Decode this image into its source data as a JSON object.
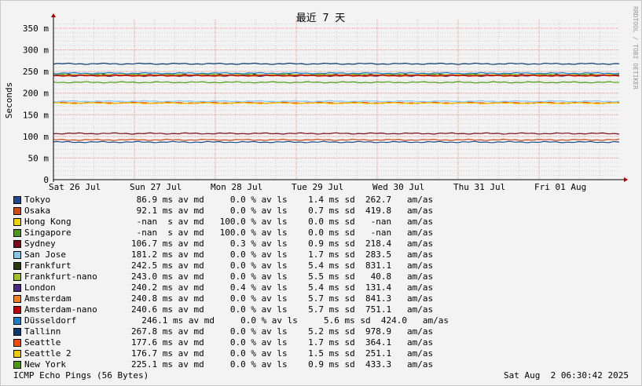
{
  "chart_data": {
    "type": "line",
    "title": "最近 7 天",
    "ylabel": "Seconds",
    "watermark": "RRDTOOL / TOBI OETIKER",
    "ylim": [
      0,
      0.37
    ],
    "y_ticks": [
      {
        "v": 0,
        "label": "0"
      },
      {
        "v": 0.05,
        "label": "50 m"
      },
      {
        "v": 0.1,
        "label": "100 m"
      },
      {
        "v": 0.15,
        "label": "150 m"
      },
      {
        "v": 0.2,
        "label": "200 m"
      },
      {
        "v": 0.25,
        "label": "250 m"
      },
      {
        "v": 0.3,
        "label": "300 m"
      },
      {
        "v": 0.35,
        "label": "350 m"
      }
    ],
    "x_ticks": [
      "Sat 26 Jul",
      "Sun 27 Jul",
      "Mon 28 Jul",
      "Tue 29 Jul",
      "Wed 30 Jul",
      "Thu 31 Jul",
      "Fri 01 Aug"
    ],
    "grid": true,
    "colors": {
      "major_grid": "#e8a0a0",
      "minor_grid": "#d0d0d0",
      "axis": "#000000",
      "arrow": "#a00000"
    },
    "series": [
      {
        "name": "Tokyo",
        "color": "#1e4a8c",
        "level": 0.0869
      },
      {
        "name": "Osaka",
        "color": "#d04a1a",
        "level": 0.0921
      },
      {
        "name": "Hong Kong",
        "color": "#f0d000",
        "level": null
      },
      {
        "name": "Singapore",
        "color": "#4a9a1a",
        "level": null
      },
      {
        "name": "Sydney",
        "color": "#7a0a1a",
        "level": 0.1067
      },
      {
        "name": "San Jose",
        "color": "#80c8f0",
        "level": 0.1812
      },
      {
        "name": "Frankfurt",
        "color": "#2a3a10",
        "level": 0.2425
      },
      {
        "name": "Frankfurt-nano",
        "color": "#a0c020",
        "level": 0.243
      },
      {
        "name": "London",
        "color": "#4a2a80",
        "level": 0.2402
      },
      {
        "name": "Amsterdam",
        "color": "#f08020",
        "level": 0.2408
      },
      {
        "name": "Amsterdam-nano",
        "color": "#c00000",
        "level": 0.2406
      },
      {
        "name": "Düsseldorf",
        "color": "#1a80c8",
        "level": 0.2461
      },
      {
        "name": "Tallinn",
        "color": "#0a3a70",
        "level": 0.2678
      },
      {
        "name": "Seattle",
        "color": "#f04a10",
        "level": 0.1776
      },
      {
        "name": "Seattle 2",
        "color": "#f0c800",
        "level": 0.1767
      },
      {
        "name": "New York",
        "color": "#4a9a10",
        "level": 0.2251
      }
    ]
  },
  "legend": [
    {
      "name": "Tokyo",
      "stats": " 86.9 ms av md     0.0 % av ls    1.4 ms sd  262.7   am/as"
    },
    {
      "name": "Osaka",
      "stats": " 92.1 ms av md     0.0 % av ls    0.7 ms sd  419.8   am/as"
    },
    {
      "name": "Hong Kong",
      "stats": " -nan  s av md   100.0 % av ls    0.0 ms sd   -nan   am/as"
    },
    {
      "name": "Singapore",
      "stats": " -nan  s av md   100.0 % av ls    0.0 ms sd   -nan   am/as"
    },
    {
      "name": "Sydney",
      "stats": "106.7 ms av md     0.3 % av ls    0.9 ms sd  218.4   am/as"
    },
    {
      "name": "San Jose",
      "stats": "181.2 ms av md     0.0 % av ls    1.7 ms sd  283.5   am/as"
    },
    {
      "name": "Frankfurt",
      "stats": "242.5 ms av md     0.0 % av ls    5.4 ms sd  831.1   am/as"
    },
    {
      "name": "Frankfurt-nano",
      "stats": "243.0 ms av md     0.0 % av ls    5.5 ms sd   40.8   am/as"
    },
    {
      "name": "London",
      "stats": "240.2 ms av md     0.4 % av ls    5.4 ms sd  131.4   am/as"
    },
    {
      "name": "Amsterdam",
      "stats": "240.8 ms av md     0.0 % av ls    5.7 ms sd  841.3   am/as"
    },
    {
      "name": "Amsterdam-nano",
      "stats": "240.6 ms av md     0.0 % av ls    5.7 ms sd  751.1   am/as"
    },
    {
      "name": "Düsseldorf",
      "stats": "  246.1 ms av md     0.0 % av ls     5.6 ms sd  424.0   am/as"
    },
    {
      "name": "Tallinn",
      "stats": "267.8 ms av md     0.0 % av ls    5.2 ms sd  978.9   am/as"
    },
    {
      "name": "Seattle",
      "stats": "177.6 ms av md     0.0 % av ls    1.7 ms sd  364.1   am/as"
    },
    {
      "name": "Seattle 2",
      "stats": "176.7 ms av md     0.0 % av ls    1.5 ms sd  251.1   am/as"
    },
    {
      "name": "New York",
      "stats": "225.1 ms av md     0.0 % av ls    0.9 ms sd  433.3   am/as"
    }
  ],
  "footer": {
    "left": "ICMP Echo Pings (56 Bytes)",
    "right": "Sat Aug  2 06:30:42 2025"
  }
}
